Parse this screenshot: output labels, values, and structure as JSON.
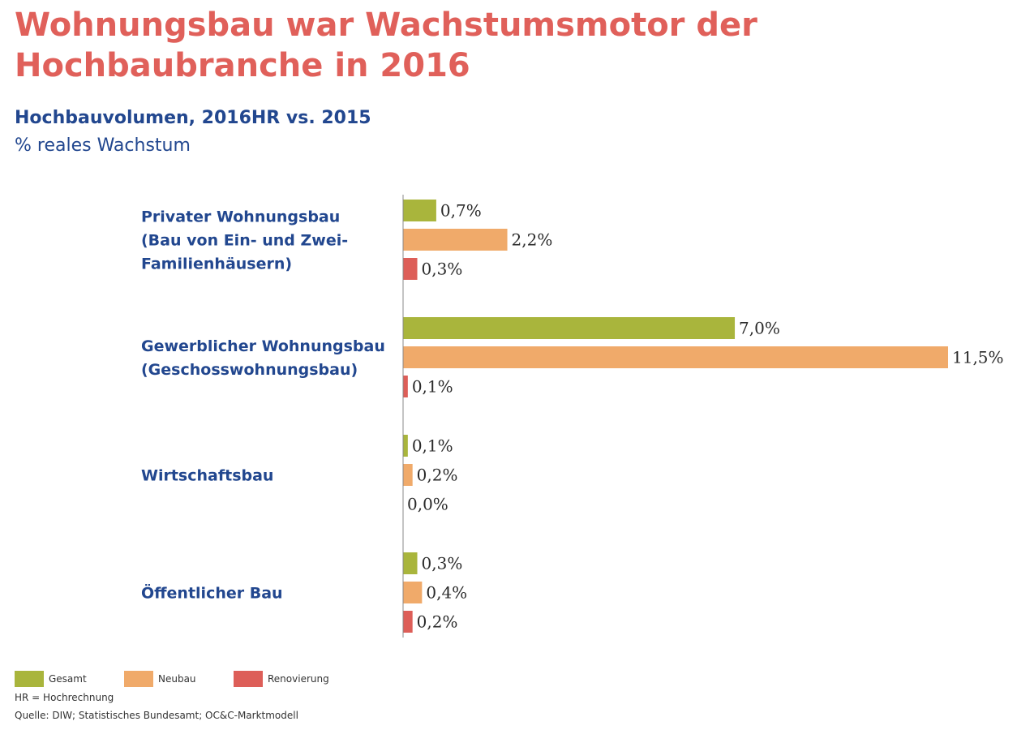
{
  "header": {
    "title": "Wohnungsbau war Wachstumsmotor der Hochbaubranche in 2016",
    "subtitle": "Hochbauvolumen, 2016HR vs. 2015",
    "unit": "% reales Wachstum"
  },
  "chart_data": {
    "type": "bar",
    "orientation": "horizontal",
    "categories": [
      [
        "Privater Wohnungsbau",
        "(Bau von Ein- und Zwei-",
        "Familienhäusern)"
      ],
      [
        "Gewerblicher Wohnungsbau",
        "(Geschosswohnungsbau)"
      ],
      [
        "Wirtschaftsbau"
      ],
      [
        "Öffentlicher Bau"
      ]
    ],
    "series": [
      {
        "name": "Gesamt",
        "color": "#a9b53c",
        "values": [
          0.7,
          7.0,
          0.1,
          0.3
        ],
        "labels": [
          "0,7%",
          "7,0%",
          "0,1%",
          "0,3%"
        ]
      },
      {
        "name": "Neubau",
        "color": "#f0aa6a",
        "values": [
          2.2,
          11.5,
          0.2,
          0.4
        ],
        "labels": [
          "2,2%",
          "11,5%",
          "0,2%",
          "0,4%"
        ]
      },
      {
        "name": "Renovierung",
        "color": "#dd5e58",
        "values": [
          0.3,
          0.1,
          0.0,
          0.2
        ],
        "labels": [
          "0,3%",
          "0,1%",
          "0,0%",
          "0,2%"
        ]
      }
    ],
    "xlim": [
      0,
      11.5
    ],
    "grid": false,
    "legend_position": "bottom-left"
  },
  "footer": {
    "note": "HR = Hochrechnung",
    "source": "Quelle: DIW; Statistisches Bundesamt; OC&C-Marktmodell"
  }
}
